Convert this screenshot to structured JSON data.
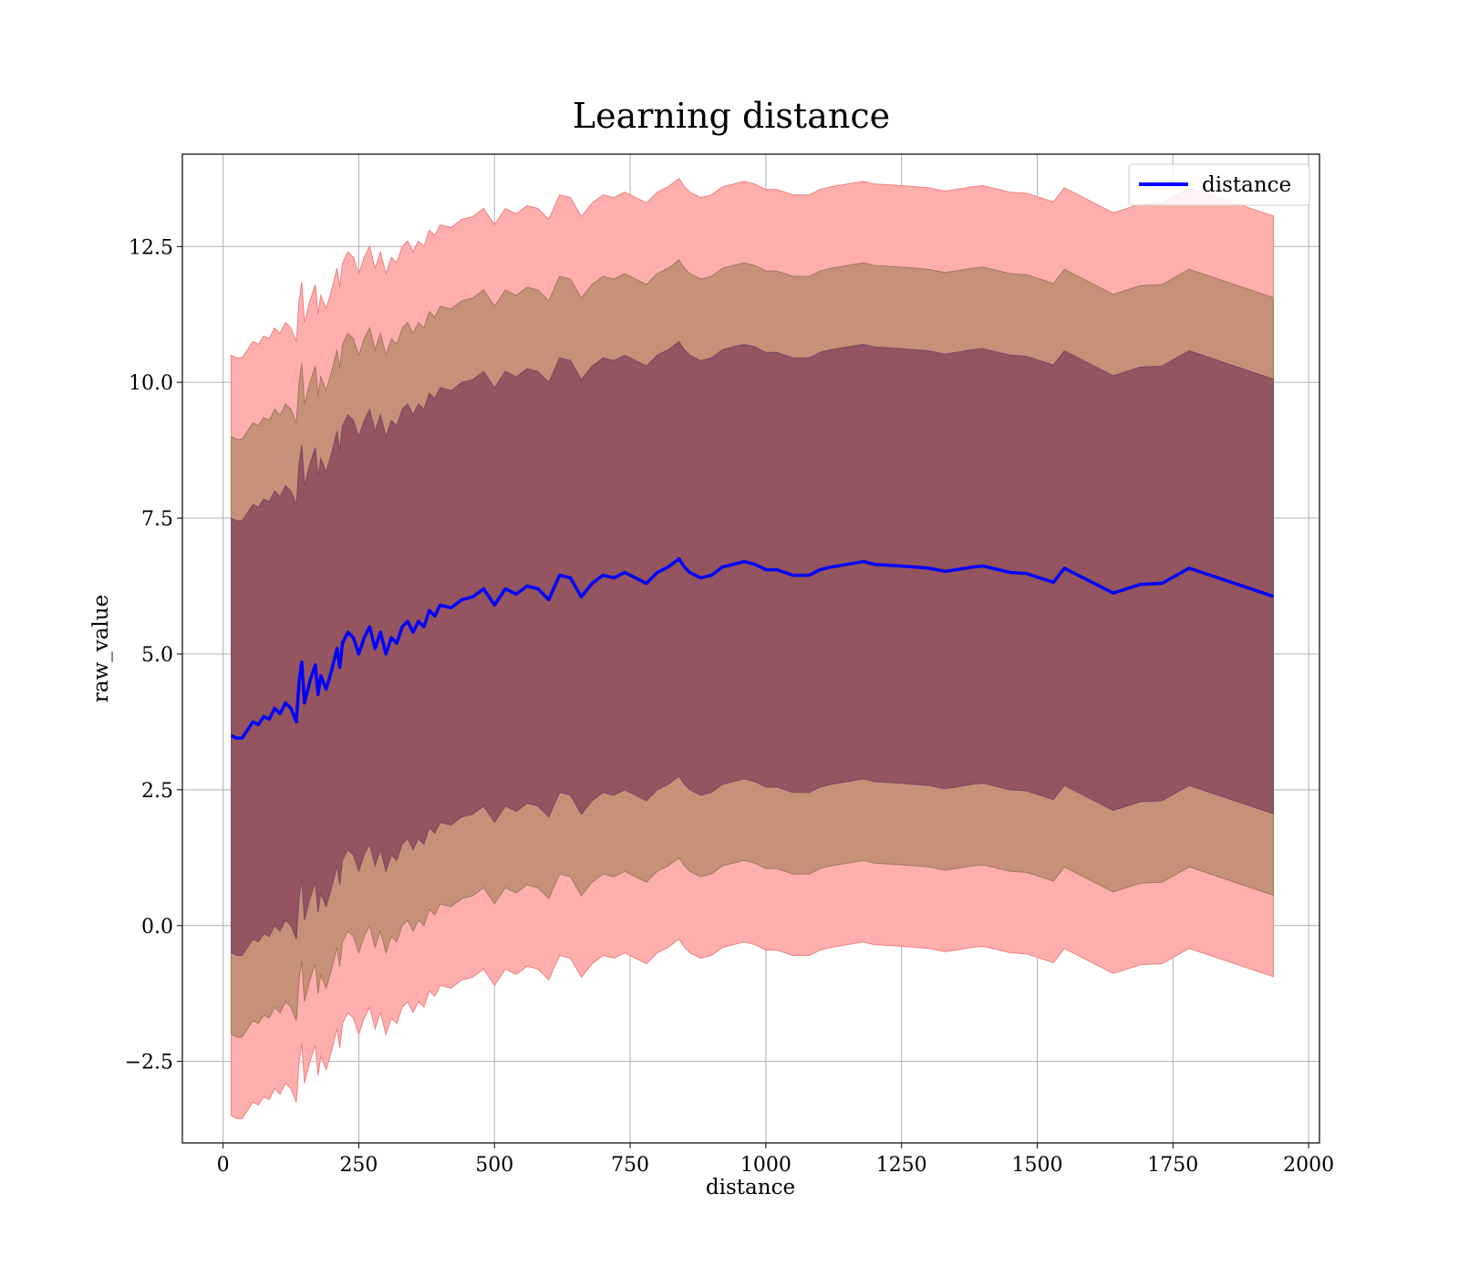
{
  "chart_data": {
    "type": "line",
    "title": "Learning distance",
    "xlabel": "distance",
    "ylabel": "raw_value",
    "xlim": [
      -75,
      2020
    ],
    "ylim": [
      -4.0,
      14.2
    ],
    "x_ticks": [
      0,
      250,
      500,
      750,
      1000,
      1250,
      1500,
      1750,
      2000
    ],
    "x_tick_labels": [
      "0",
      "250",
      "500",
      "750",
      "1000",
      "1250",
      "1500",
      "1750",
      "2000"
    ],
    "y_ticks": [
      -2.5,
      0.0,
      2.5,
      5.0,
      7.5,
      10.0,
      12.5
    ],
    "y_tick_labels": [
      "−2.5",
      "0.0",
      "2.5",
      "5.0",
      "7.5",
      "10.0",
      "12.5"
    ],
    "grid": true,
    "legend": {
      "placement": "top-right",
      "entries": [
        {
          "name": "distance",
          "color": "#0000ff"
        }
      ]
    },
    "band_half_widths": [
      4.0,
      5.5,
      7.0
    ],
    "band_colors": {
      "inner": "#8b4a5c",
      "middle": "#c79079",
      "outer": "#ffaeae"
    },
    "series": [
      {
        "name": "distance",
        "color": "#0000ff",
        "x": [
          15,
          25,
          35,
          45,
          55,
          65,
          75,
          85,
          95,
          105,
          115,
          125,
          135,
          140,
          145,
          150,
          160,
          170,
          175,
          180,
          190,
          200,
          210,
          215,
          220,
          230,
          240,
          250,
          260,
          270,
          280,
          290,
          300,
          310,
          320,
          330,
          340,
          350,
          360,
          370,
          380,
          390,
          400,
          420,
          440,
          460,
          480,
          500,
          520,
          540,
          560,
          580,
          600,
          620,
          640,
          660,
          680,
          700,
          720,
          740,
          760,
          780,
          800,
          820,
          840,
          850,
          860,
          880,
          900,
          920,
          940,
          960,
          980,
          1000,
          1020,
          1050,
          1080,
          1100,
          1120,
          1150,
          1180,
          1200,
          1250,
          1300,
          1330,
          1350,
          1380,
          1400,
          1450,
          1480,
          1530,
          1550,
          1640,
          1690,
          1730,
          1780,
          1935
        ],
        "y": [
          3.5,
          3.45,
          3.45,
          3.6,
          3.75,
          3.7,
          3.85,
          3.8,
          4.0,
          3.9,
          4.1,
          4.0,
          3.75,
          4.5,
          4.85,
          4.1,
          4.5,
          4.8,
          4.25,
          4.6,
          4.35,
          4.7,
          5.1,
          4.75,
          5.2,
          5.4,
          5.3,
          5.0,
          5.3,
          5.5,
          5.1,
          5.4,
          5.0,
          5.3,
          5.2,
          5.5,
          5.6,
          5.4,
          5.6,
          5.5,
          5.8,
          5.7,
          5.9,
          5.85,
          6.0,
          6.05,
          6.2,
          5.9,
          6.2,
          6.1,
          6.25,
          6.2,
          6.0,
          6.45,
          6.4,
          6.05,
          6.3,
          6.45,
          6.4,
          6.5,
          6.4,
          6.3,
          6.5,
          6.6,
          6.75,
          6.6,
          6.5,
          6.4,
          6.45,
          6.6,
          6.65,
          6.7,
          6.65,
          6.55,
          6.55,
          6.45,
          6.45,
          6.55,
          6.6,
          6.65,
          6.7,
          6.65,
          6.62,
          6.58,
          6.52,
          6.55,
          6.6,
          6.62,
          6.5,
          6.48,
          6.32,
          6.58,
          6.12,
          6.28,
          6.3,
          6.58,
          6.06
        ]
      }
    ]
  }
}
